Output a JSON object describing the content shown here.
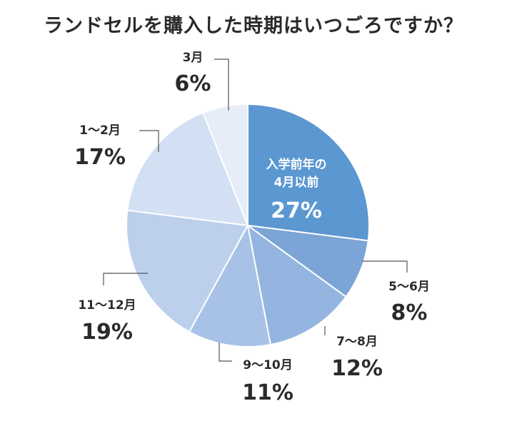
{
  "chart_data": {
    "type": "pie",
    "title": "ランドセルを購入した時期はいつごろですか？",
    "slices": [
      {
        "label": "入学前年の\n4月以前",
        "value": 27,
        "display": "27%",
        "color": "#5b97d1"
      },
      {
        "label": "5〜6月",
        "value": 8,
        "display": "8%",
        "color": "#7aa5d6"
      },
      {
        "label": "7〜8月",
        "value": 12,
        "display": "12%",
        "color": "#93b5e0"
      },
      {
        "label": "9〜10月",
        "value": 11,
        "display": "11%",
        "color": "#a7c2e6"
      },
      {
        "label": "11〜12月",
        "value": 19,
        "display": "19%",
        "color": "#bcd0ec"
      },
      {
        "label": "1〜2月",
        "value": 17,
        "display": "17%",
        "color": "#d3e0f3"
      },
      {
        "label": "3月",
        "value": 6,
        "display": "6%",
        "color": "#e6edf8"
      }
    ],
    "direction": "clockwise",
    "start": "top"
  }
}
